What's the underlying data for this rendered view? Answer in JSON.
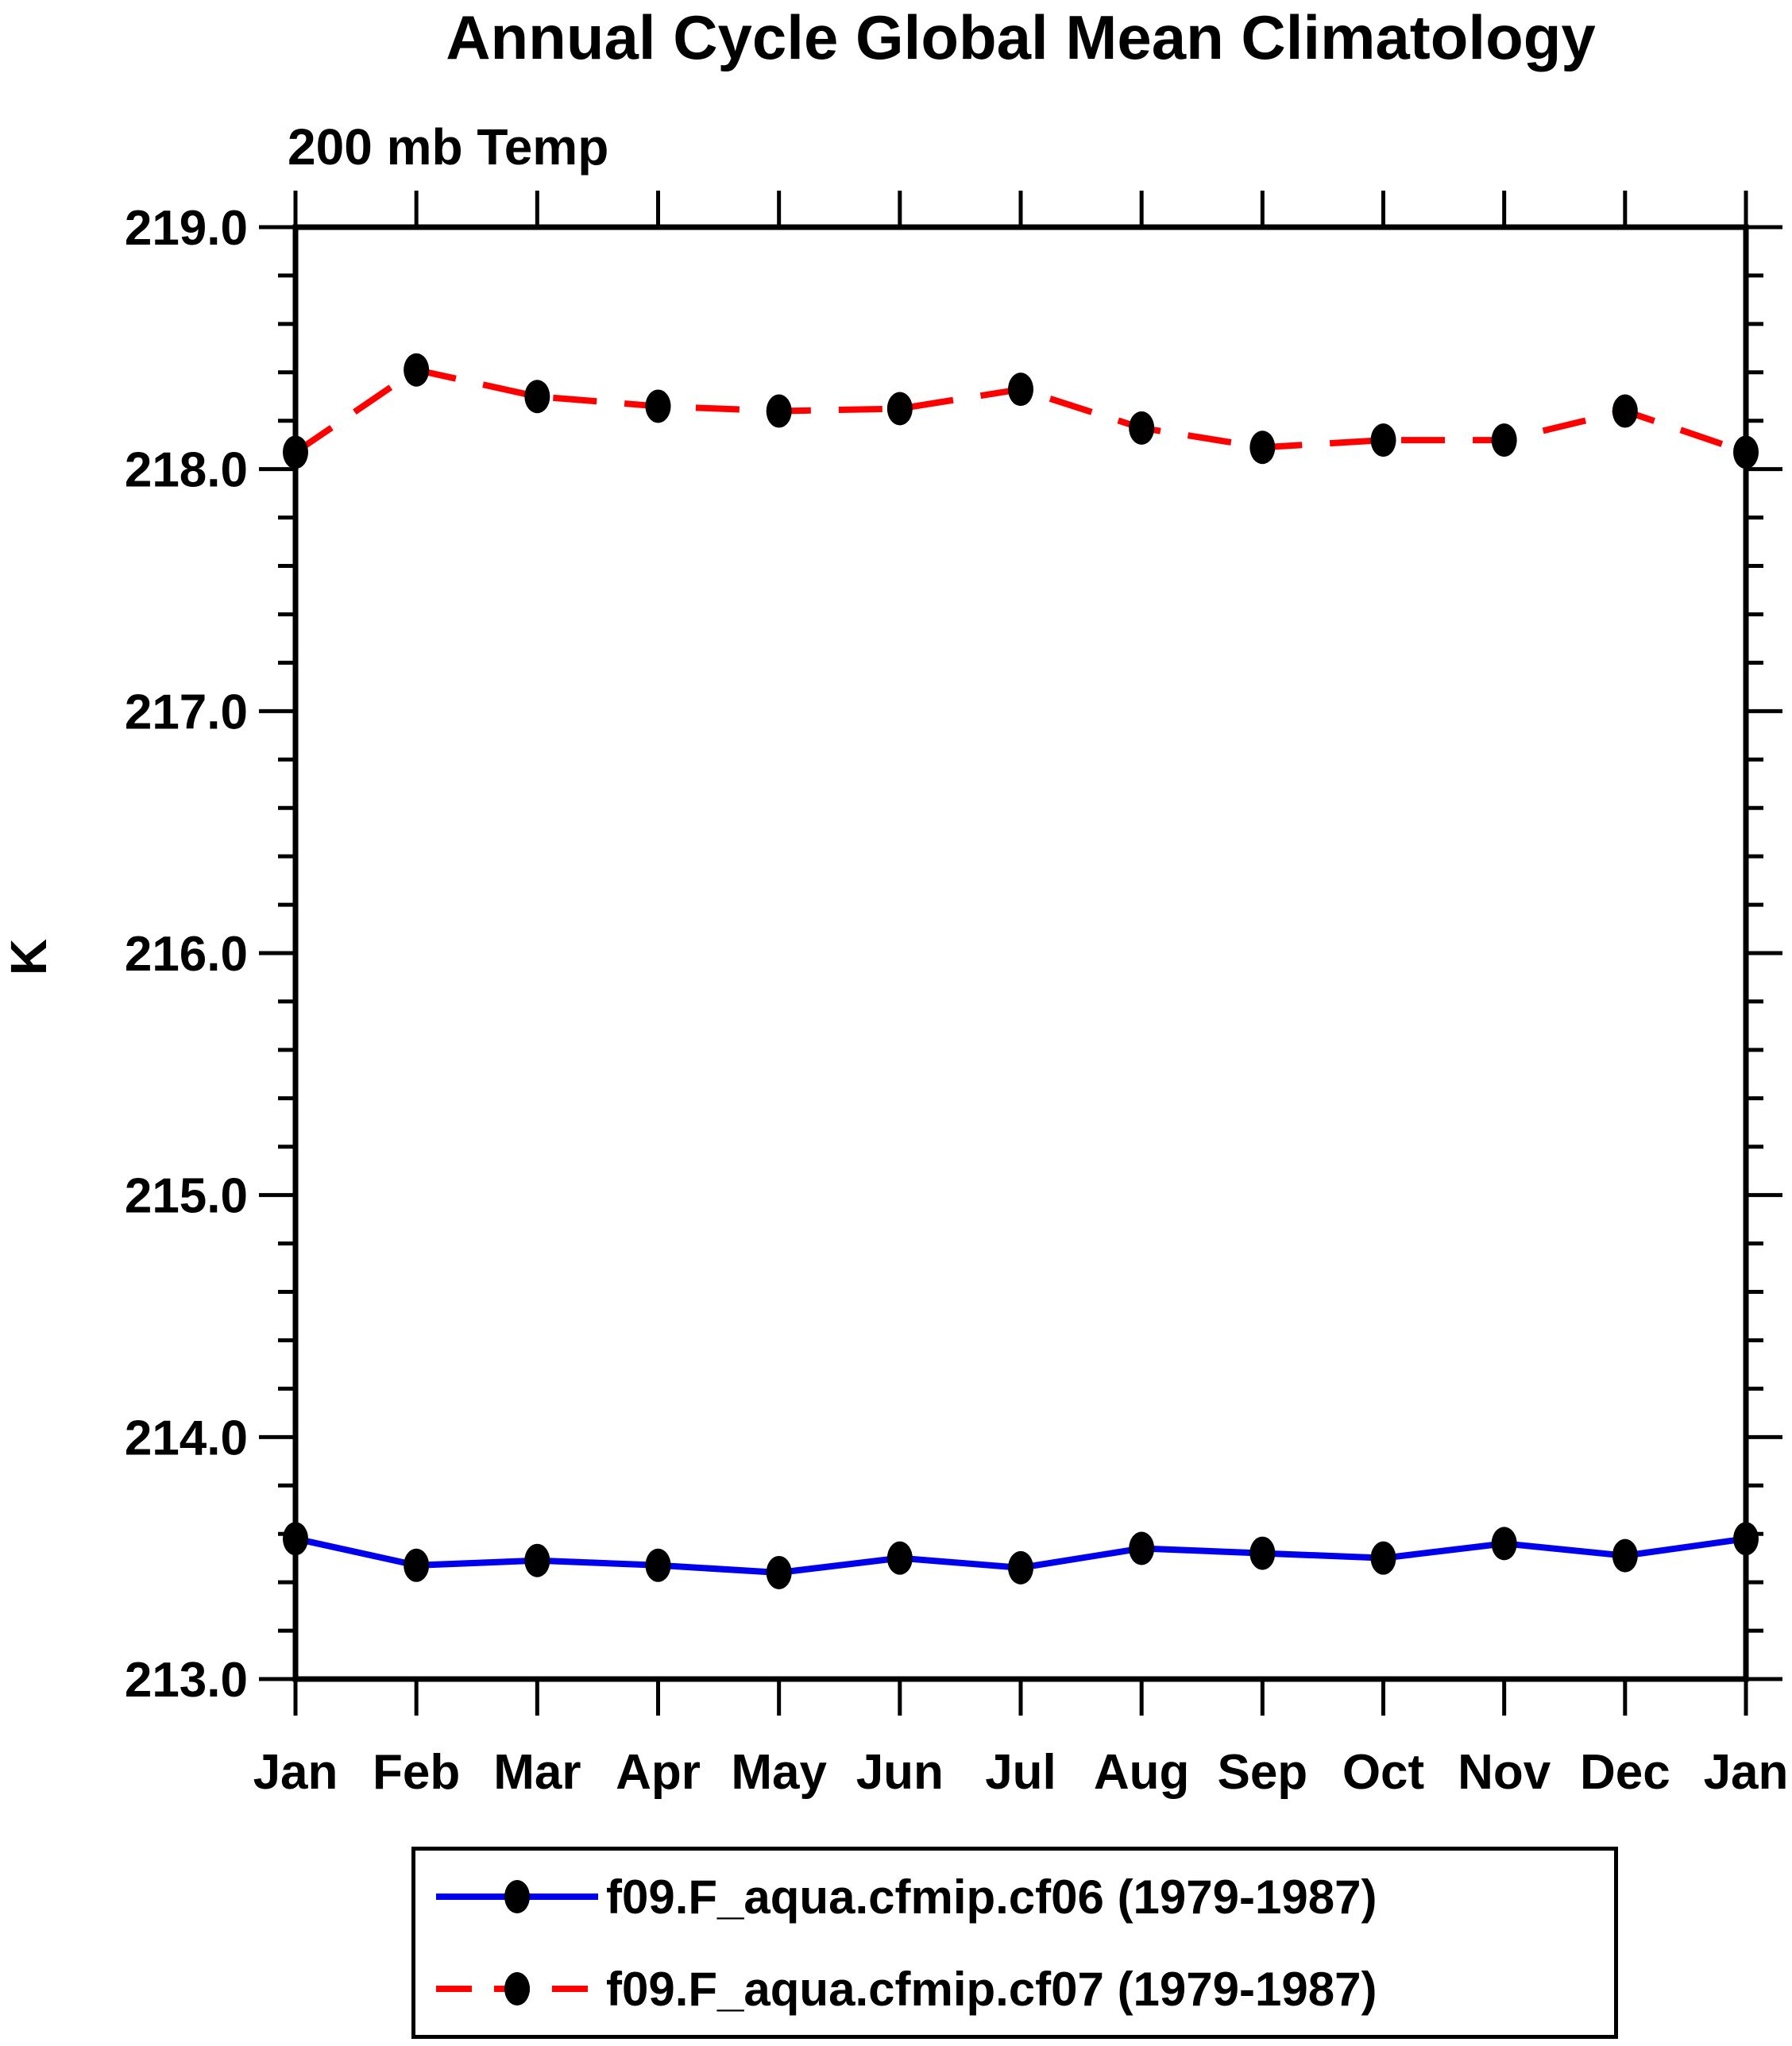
{
  "title": "Annual Cycle Global Mean Climatology",
  "subtitle": "200 mb Temp",
  "chart_data": {
    "type": "line",
    "title": "Annual Cycle Global Mean Climatology",
    "subtitle": "200 mb Temp",
    "xlabel": "",
    "ylabel": "K",
    "categories": [
      "Jan",
      "Feb",
      "Mar",
      "Apr",
      "May",
      "Jun",
      "Jul",
      "Aug",
      "Sep",
      "Oct",
      "Nov",
      "Dec",
      "Jan"
    ],
    "ylim": [
      213.0,
      219.0
    ],
    "ytick_major_interval": 1.0,
    "ytick_minor_interval": 0.2,
    "ytick_labels": [
      "219.0",
      "218.0",
      "217.0",
      "216.0",
      "215.0",
      "214.0",
      "213.0"
    ],
    "grid": false,
    "legend_position": "bottom-center",
    "frame_color": "#000000",
    "marker": {
      "shape": "ellipse",
      "color": "#000000",
      "rx": 16,
      "ry": 21
    },
    "series": [
      {
        "name": "f09.F_aqua.cfmip.cf06 (1979-1987)",
        "color": "#0000ee",
        "style": "solid",
        "values": [
          213.58,
          213.47,
          213.49,
          213.47,
          213.44,
          213.5,
          213.46,
          213.54,
          213.52,
          213.5,
          213.56,
          213.51,
          213.58
        ]
      },
      {
        "name": "f09.F_aqua.cfmip.cf07 (1979-1987)",
        "color": "#ff0000",
        "style": "dashed",
        "values": [
          218.07,
          218.41,
          218.3,
          218.26,
          218.24,
          218.25,
          218.33,
          218.17,
          218.09,
          218.12,
          218.12,
          218.24,
          218.07
        ]
      }
    ]
  }
}
